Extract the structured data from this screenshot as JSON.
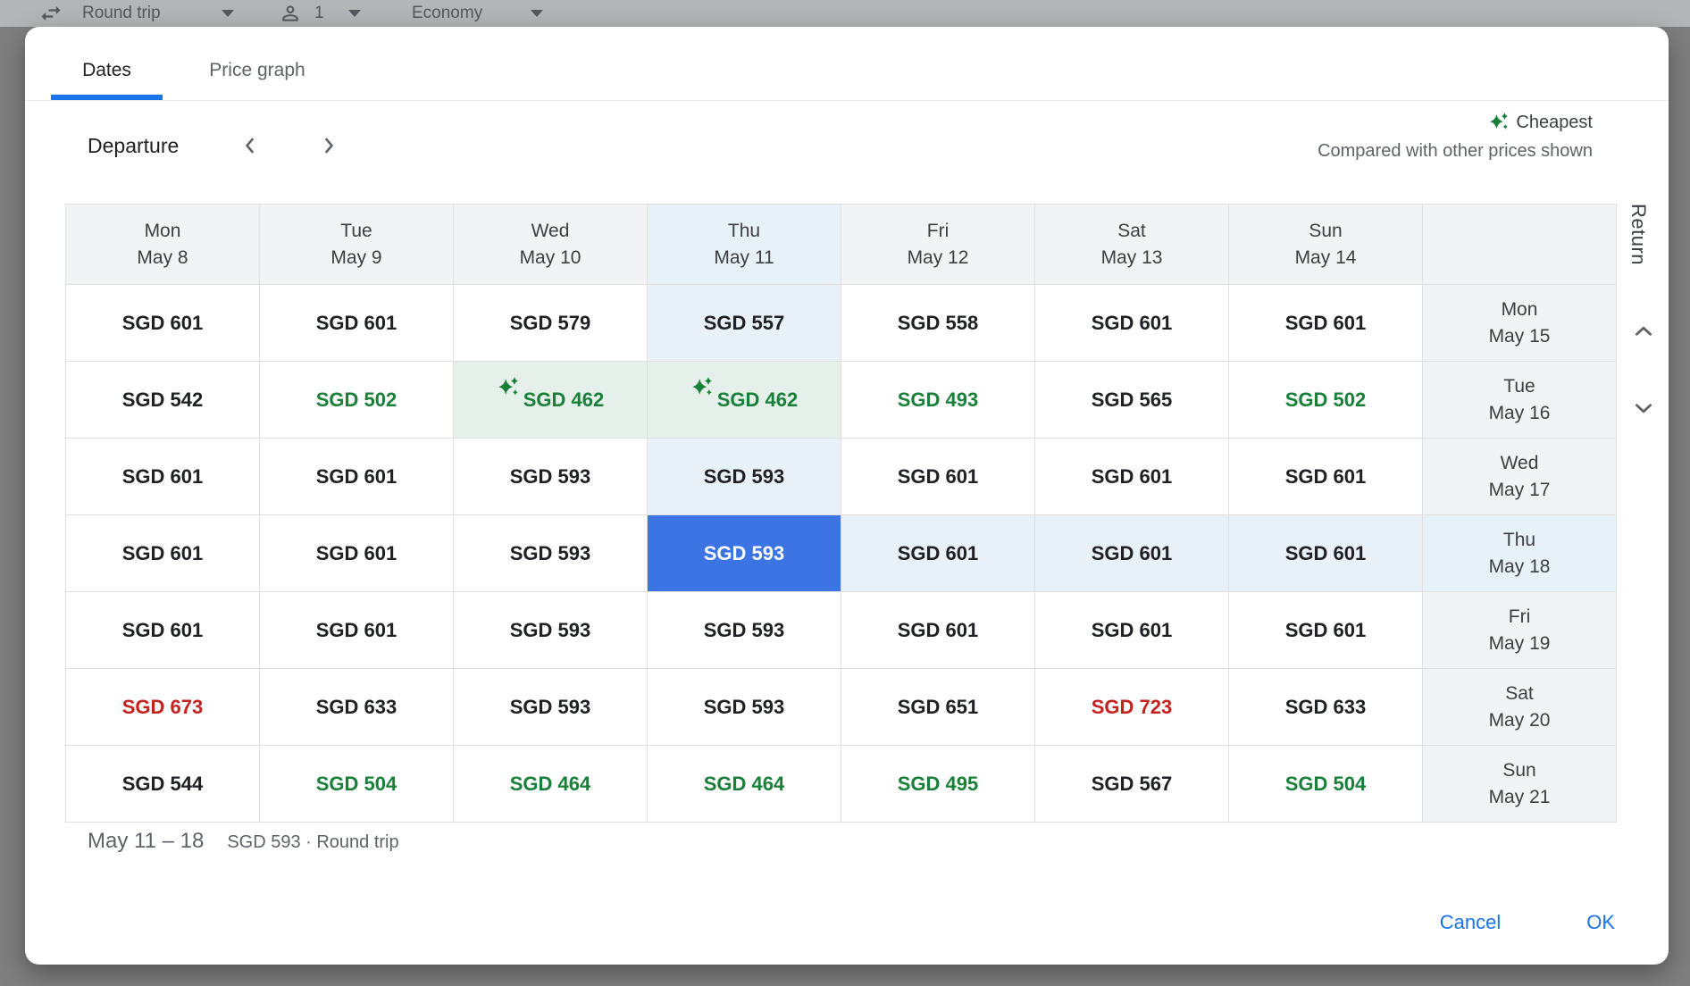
{
  "toolbar": {
    "trip_type": "Round trip",
    "passengers": "1",
    "cabin": "Economy",
    "icons": [
      "swap-horizontal-icon",
      "person-icon",
      "caret-down-icon"
    ]
  },
  "dialog": {
    "tabs": [
      {
        "label": "Dates"
      },
      {
        "label": "Price graph"
      }
    ],
    "active_tab": "Dates",
    "departure": {
      "label": "Departure"
    },
    "legend": {
      "label": "Cheapest",
      "subtext": "Compared with other prices shown",
      "icon": "sparkle-icon"
    },
    "return_label": "Return",
    "grid": {
      "columns": [
        {
          "day": "Mon",
          "date": "May 8"
        },
        {
          "day": "Tue",
          "date": "May 9"
        },
        {
          "day": "Wed",
          "date": "May 10"
        },
        {
          "day": "Thu",
          "date": "May 11",
          "highlight": true
        },
        {
          "day": "Fri",
          "date": "May 12"
        },
        {
          "day": "Sat",
          "date": "May 13"
        },
        {
          "day": "Sun",
          "date": "May 14"
        }
      ],
      "rows": [
        {
          "header": {
            "day": "Mon",
            "date": "May 15"
          },
          "cells": [
            {
              "p": "SGD 601"
            },
            {
              "p": "SGD 601"
            },
            {
              "p": "SGD 579"
            },
            {
              "p": "SGD 557",
              "bg": "tint"
            },
            {
              "p": "SGD 558"
            },
            {
              "p": "SGD 601"
            },
            {
              "p": "SGD 601"
            }
          ]
        },
        {
          "header": {
            "day": "Tue",
            "date": "May 16"
          },
          "cells": [
            {
              "p": "SGD 542"
            },
            {
              "p": "SGD 502",
              "tone": "low"
            },
            {
              "p": "SGD 462",
              "tone": "low",
              "bg": "cheap",
              "sparkle": true
            },
            {
              "p": "SGD 462",
              "tone": "low",
              "bg": "cheap",
              "sparkle": true
            },
            {
              "p": "SGD 493",
              "tone": "low"
            },
            {
              "p": "SGD 565"
            },
            {
              "p": "SGD 502",
              "tone": "low"
            }
          ]
        },
        {
          "header": {
            "day": "Wed",
            "date": "May 17"
          },
          "cells": [
            {
              "p": "SGD 601"
            },
            {
              "p": "SGD 601"
            },
            {
              "p": "SGD 593"
            },
            {
              "p": "SGD 593",
              "bg": "tint"
            },
            {
              "p": "SGD 601"
            },
            {
              "p": "SGD 601"
            },
            {
              "p": "SGD 601"
            }
          ]
        },
        {
          "header": {
            "day": "Thu",
            "date": "May 18",
            "highlight": true
          },
          "cells": [
            {
              "p": "SGD 601"
            },
            {
              "p": "SGD 601"
            },
            {
              "p": "SGD 593"
            },
            {
              "p": "SGD 593",
              "selected": true
            },
            {
              "p": "SGD 601",
              "bg": "tint"
            },
            {
              "p": "SGD 601",
              "bg": "tint"
            },
            {
              "p": "SGD 601",
              "bg": "tint"
            }
          ]
        },
        {
          "header": {
            "day": "Fri",
            "date": "May 19"
          },
          "cells": [
            {
              "p": "SGD 601"
            },
            {
              "p": "SGD 601"
            },
            {
              "p": "SGD 593"
            },
            {
              "p": "SGD 593"
            },
            {
              "p": "SGD 601"
            },
            {
              "p": "SGD 601"
            },
            {
              "p": "SGD 601"
            }
          ]
        },
        {
          "header": {
            "day": "Sat",
            "date": "May 20"
          },
          "cells": [
            {
              "p": "SGD 673",
              "tone": "high"
            },
            {
              "p": "SGD 633"
            },
            {
              "p": "SGD 593"
            },
            {
              "p": "SGD 593"
            },
            {
              "p": "SGD 651"
            },
            {
              "p": "SGD 723",
              "tone": "high"
            },
            {
              "p": "SGD 633"
            }
          ]
        },
        {
          "header": {
            "day": "Sun",
            "date": "May 21"
          },
          "cells": [
            {
              "p": "SGD 544"
            },
            {
              "p": "SGD 504",
              "tone": "low"
            },
            {
              "p": "SGD 464",
              "tone": "low"
            },
            {
              "p": "SGD 464",
              "tone": "low"
            },
            {
              "p": "SGD 495",
              "tone": "low"
            },
            {
              "p": "SGD 567"
            },
            {
              "p": "SGD 504",
              "tone": "low"
            }
          ]
        }
      ]
    },
    "summary": {
      "range": "May 11 – 18",
      "detail": "SGD 593 · Round trip"
    },
    "actions": {
      "cancel": "Cancel",
      "ok": "OK"
    }
  },
  "colors": {
    "selected_blue": "#3c74e4",
    "cheapest_green": "#188038",
    "expensive_red": "#c5221f",
    "tint_blue": "#e8f1f8",
    "tint_green": "#e4f0e9",
    "link_blue": "#1a73e8",
    "header_gray": "#f1f3f4"
  }
}
